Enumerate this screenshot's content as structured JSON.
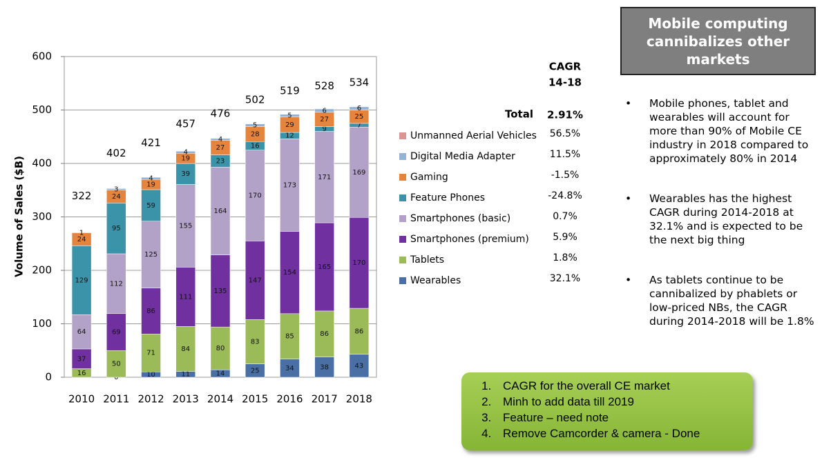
{
  "chart_data": {
    "type": "stacked-bar",
    "y_label": "Volume of Sales ($B)",
    "categories": [
      "2010",
      "2011",
      "2012",
      "2013",
      "2014",
      "2015",
      "2016",
      "2017",
      "2018"
    ],
    "ylim": [
      0,
      600
    ],
    "yticks": [
      0,
      100,
      200,
      300,
      400,
      500,
      600
    ],
    "grid": true,
    "totals": [
      322,
      402,
      421,
      457,
      476,
      502,
      519,
      528,
      534
    ],
    "cagr_header": [
      "CAGR",
      "14-18"
    ],
    "total_label": "Total",
    "total_cagr": "2.91%",
    "series": [
      {
        "name": "Wearables",
        "color": "#4a6fa5",
        "cagr": "32.1%",
        "values": [
          null,
          0,
          10,
          11,
          14,
          25,
          34,
          38,
          43
        ]
      },
      {
        "name": "Tablets",
        "color": "#9bbb59",
        "cagr": "1.8%",
        "values": [
          16,
          50,
          71,
          84,
          80,
          83,
          85,
          86,
          86
        ]
      },
      {
        "name": "Smartphones (premium)",
        "color": "#7030a0",
        "cagr": "5.9%",
        "values": [
          37,
          69,
          86,
          111,
          135,
          147,
          154,
          165,
          170
        ]
      },
      {
        "name": "Smartphones (basic)",
        "color": "#b3a2c7",
        "cagr": "0.7%",
        "values": [
          64,
          112,
          125,
          155,
          164,
          170,
          173,
          171,
          169
        ]
      },
      {
        "name": "Feature Phones",
        "color": "#3a93a8",
        "cagr": "-24.8%",
        "values": [
          129,
          95,
          59,
          39,
          23,
          16,
          12,
          9,
          7
        ]
      },
      {
        "name": "Gaming",
        "color": "#e5843d",
        "cagr": "-1.5%",
        "values": [
          24,
          24,
          19,
          19,
          27,
          28,
          29,
          27,
          25
        ]
      },
      {
        "name": "Digital Media Adapter",
        "color": "#95b3d7",
        "cagr": "11.5%",
        "values": [
          1,
          3,
          4,
          4,
          4,
          5,
          5,
          6,
          6
        ]
      },
      {
        "name": "Unmanned Aerial Vehicles",
        "color": "#d99694",
        "cagr": "56.5%",
        "values": [
          null,
          null,
          null,
          null,
          null,
          null,
          null,
          null,
          null
        ]
      }
    ]
  },
  "sidebar": {
    "title": "Mobile computing cannibalizes other markets",
    "bullets": [
      "Mobile phones, tablet and wearables will account for more than 90% of Mobile CE industry in 2018 compared to approximately 80% in 2014",
      "Wearables has the highest CAGR during 2014-2018 at 32.1% and is expected to be the next big thing",
      "As tablets continue to be cannibalized by phablets or low-priced NBs, the CAGR during 2014-2018 will be 1.8%"
    ]
  },
  "notes": [
    "CAGR for the overall CE market",
    "Minh to add data till 2019",
    "Feature – need note",
    "Remove Camcorder & camera - Done"
  ]
}
